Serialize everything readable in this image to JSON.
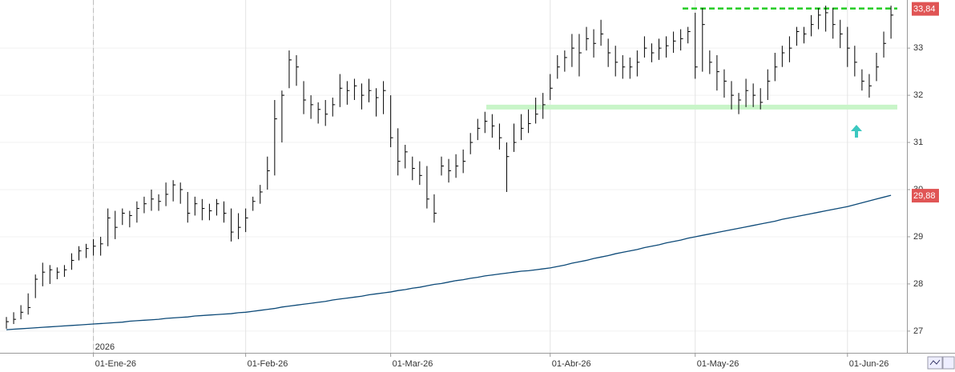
{
  "chart_data": {
    "type": "ohlc",
    "categories": [
      null,
      null,
      null,
      null,
      null,
      null,
      null,
      null,
      null,
      null,
      null,
      null,
      "01-Ene-26",
      null,
      null,
      null,
      null,
      null,
      null,
      null,
      null,
      null,
      null,
      null,
      null,
      null,
      null,
      null,
      null,
      null,
      null,
      null,
      null,
      "01-Feb-26",
      null,
      null,
      null,
      null,
      null,
      null,
      null,
      null,
      null,
      null,
      null,
      null,
      null,
      null,
      null,
      null,
      null,
      null,
      null,
      "01-Mar-26",
      null,
      null,
      null,
      null,
      null,
      null,
      null,
      null,
      null,
      null,
      null,
      null,
      null,
      null,
      null,
      null,
      null,
      null,
      null,
      null,
      null,
      "01-Abr-26",
      null,
      null,
      null,
      null,
      null,
      null,
      null,
      null,
      null,
      null,
      null,
      null,
      null,
      null,
      null,
      null,
      null,
      null,
      null,
      "01-May-26",
      null,
      null,
      null,
      null,
      null,
      null,
      null,
      null,
      null,
      null,
      null,
      null,
      null,
      null,
      null,
      null,
      null,
      null,
      null,
      null,
      "01-Jun-26",
      null,
      null,
      null,
      null,
      null,
      null
    ],
    "year_label": "2026",
    "bar_color": "#000000",
    "high": [
      27.3,
      27.4,
      27.55,
      27.8,
      28.2,
      28.45,
      28.4,
      28.35,
      28.4,
      28.65,
      28.8,
      28.85,
      28.95,
      29.0,
      29.6,
      29.55,
      29.6,
      29.55,
      29.75,
      29.85,
      30.0,
      29.9,
      30.15,
      30.2,
      30.15,
      29.95,
      29.85,
      29.8,
      29.7,
      29.8,
      29.75,
      29.6,
      29.5,
      29.6,
      29.85,
      30.1,
      30.7,
      31.9,
      32.1,
      32.95,
      32.85,
      32.3,
      32.0,
      31.85,
      31.9,
      31.95,
      32.45,
      32.3,
      32.35,
      32.25,
      32.35,
      32.15,
      32.3,
      32.0,
      31.3,
      30.95,
      30.7,
      30.6,
      30.5,
      29.9,
      30.7,
      30.65,
      30.75,
      30.85,
      31.2,
      31.5,
      31.65,
      31.6,
      31.4,
      31.0,
      31.4,
      31.6,
      31.7,
      31.95,
      32.05,
      32.45,
      32.85,
      32.95,
      33.3,
      33.3,
      33.45,
      33.4,
      33.6,
      33.2,
      33.05,
      32.85,
      32.8,
      32.95,
      33.25,
      33.1,
      33.2,
      33.25,
      33.35,
      33.4,
      33.45,
      33.75,
      33.85,
      32.95,
      32.85,
      32.55,
      32.3,
      32.05,
      32.35,
      32.25,
      32.15,
      32.55,
      32.9,
      33.05,
      33.25,
      33.45,
      33.45,
      33.7,
      33.85,
      33.9,
      33.85,
      33.6,
      33.45,
      33.05,
      32.55,
      32.45,
      32.9,
      33.35,
      33.9
    ],
    "low": [
      27.05,
      27.15,
      27.25,
      27.35,
      27.7,
      27.95,
      28.0,
      28.1,
      28.15,
      28.3,
      28.5,
      28.55,
      28.6,
      28.6,
      28.8,
      28.95,
      29.25,
      29.2,
      29.3,
      29.5,
      29.55,
      29.55,
      29.65,
      29.75,
      29.7,
      29.3,
      29.45,
      29.35,
      29.35,
      29.45,
      29.3,
      28.9,
      28.95,
      29.1,
      29.55,
      29.7,
      30.0,
      30.3,
      31.0,
      32.15,
      32.2,
      31.6,
      31.5,
      31.4,
      31.35,
      31.55,
      31.75,
      31.8,
      31.9,
      31.7,
      31.85,
      31.55,
      31.6,
      30.9,
      30.3,
      30.45,
      30.2,
      30.1,
      29.6,
      29.3,
      30.3,
      30.15,
      30.25,
      30.35,
      30.75,
      31.05,
      31.2,
      31.1,
      30.85,
      29.95,
      30.8,
      31.05,
      31.2,
      31.4,
      31.5,
      31.9,
      32.35,
      32.5,
      32.6,
      32.4,
      32.95,
      32.8,
      33.05,
      32.6,
      32.4,
      32.35,
      32.35,
      32.4,
      32.8,
      32.7,
      32.75,
      32.8,
      32.9,
      32.95,
      33.1,
      32.35,
      32.5,
      32.45,
      32.1,
      31.95,
      31.7,
      31.6,
      31.75,
      31.75,
      31.7,
      31.9,
      32.3,
      32.6,
      32.7,
      33.05,
      33.1,
      33.25,
      33.4,
      33.35,
      33.2,
      33.0,
      32.6,
      32.4,
      32.1,
      31.95,
      32.3,
      32.8,
      33.2
    ],
    "close": [
      27.2,
      27.25,
      27.4,
      27.5,
      28.1,
      28.25,
      28.3,
      28.25,
      28.3,
      28.5,
      28.7,
      28.75,
      28.8,
      28.85,
      29.4,
      29.2,
      29.5,
      29.45,
      29.6,
      29.7,
      29.8,
      29.75,
      29.9,
      30.1,
      30.0,
      29.5,
      29.7,
      29.6,
      29.55,
      29.7,
      29.5,
      29.1,
      29.2,
      29.4,
      29.75,
      29.95,
      30.4,
      31.5,
      32.0,
      32.75,
      32.6,
      31.9,
      31.8,
      31.7,
      31.6,
      31.8,
      32.15,
      32.1,
      32.2,
      32.0,
      32.1,
      31.95,
      32.1,
      31.1,
      30.6,
      30.8,
      30.45,
      30.3,
      29.8,
      29.5,
      30.5,
      30.4,
      30.5,
      30.6,
      31.0,
      31.3,
      31.45,
      31.35,
      31.1,
      30.7,
      31.0,
      31.3,
      31.4,
      31.6,
      31.8,
      32.15,
      32.6,
      32.8,
      33.0,
      32.9,
      33.2,
      33.1,
      33.3,
      32.9,
      32.7,
      32.6,
      32.6,
      32.7,
      33.0,
      32.9,
      33.0,
      33.05,
      33.15,
      33.2,
      33.35,
      32.6,
      33.5,
      32.7,
      32.5,
      32.3,
      32.0,
      31.9,
      32.1,
      32.0,
      31.85,
      32.3,
      32.6,
      32.9,
      33.0,
      33.35,
      33.3,
      33.5,
      33.7,
      33.75,
      33.5,
      33.3,
      33.0,
      32.7,
      32.3,
      32.2,
      32.6,
      33.1,
      33.7
    ],
    "ma": {
      "color": "#0d4a78",
      "values": [
        27.03,
        27.04,
        27.05,
        27.06,
        27.07,
        27.08,
        27.09,
        27.1,
        27.11,
        27.12,
        27.13,
        27.14,
        27.15,
        27.16,
        27.17,
        27.18,
        27.19,
        27.21,
        27.22,
        27.23,
        27.24,
        27.25,
        27.27,
        27.28,
        27.29,
        27.3,
        27.32,
        27.33,
        27.34,
        27.35,
        27.36,
        27.37,
        27.39,
        27.4,
        27.42,
        27.44,
        27.46,
        27.48,
        27.51,
        27.53,
        27.55,
        27.57,
        27.59,
        27.61,
        27.63,
        27.66,
        27.68,
        27.7,
        27.72,
        27.74,
        27.77,
        27.79,
        27.81,
        27.83,
        27.86,
        27.88,
        27.91,
        27.93,
        27.96,
        27.99,
        28.01,
        28.04,
        28.07,
        28.09,
        28.12,
        28.14,
        28.17,
        28.19,
        28.21,
        28.23,
        28.25,
        28.27,
        28.28,
        28.3,
        28.32,
        28.34,
        28.37,
        28.4,
        28.44,
        28.47,
        28.5,
        28.54,
        28.57,
        28.6,
        28.64,
        28.67,
        28.7,
        28.73,
        28.77,
        28.8,
        28.83,
        28.87,
        28.9,
        28.93,
        28.97,
        29.0,
        29.03,
        29.06,
        29.09,
        29.12,
        29.15,
        29.18,
        29.21,
        29.24,
        29.27,
        29.3,
        29.33,
        29.37,
        29.4,
        29.43,
        29.46,
        29.49,
        29.52,
        29.55,
        29.58,
        29.61,
        29.64,
        29.68,
        29.72,
        29.76,
        29.8,
        29.84,
        29.88
      ]
    },
    "resistance": {
      "value": 33.84,
      "color": "#22cc22"
    },
    "support": {
      "value": 31.75,
      "color": "#c8f5c8"
    },
    "price_labels": [
      {
        "value": 33.84,
        "label": "33,84"
      },
      {
        "value": 29.88,
        "label": "29,88"
      }
    ],
    "label_color": "#e05555",
    "ylim": [
      26.54,
      34.02
    ],
    "yticks": [
      27,
      28,
      29,
      30,
      31,
      32,
      33
    ],
    "grid": true
  }
}
